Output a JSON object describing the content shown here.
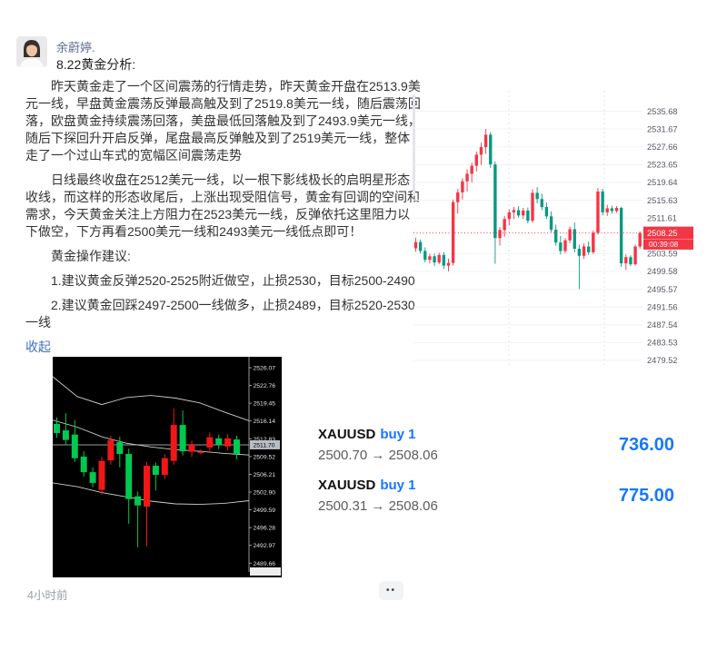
{
  "post": {
    "author": "余蔚婷.",
    "title": "8.22黄金分析:",
    "paragraphs": [
      "昨天黄金走了一个区间震荡的行情走势，昨天黄金开盘在2513.9美元一线，早盘黄金震荡反弹最高触及到了2519.8美元一线，随后震荡回落，欧盘黄金持续震荡回落，美盘最低回落触及到了2493.9美元一线，随后下探回升开启反弹，尾盘最高反弹触及到了2519美元一线，整体走了一个过山车式的宽幅区间震荡走势",
      "日线最终收盘在2512美元一线，以一根下影线极长的启明星形态收线，而这样的形态收尾后，上涨出现受阻信号，黄金有回调的空间和需求，今天黄金关注上方阻力在2523美元一线，反弹依托这里阻力以下做空，下方再看2500美元一线和2493美元一线低点即可！",
      "黄金操作建议:",
      "1.建议黄金反弹2520-2525附近做空，止损2530，目标2500-2490",
      "2.建议黄金回踩2497-2500一线做多，止损2489，目标2520-2530一线"
    ],
    "collapse_label": "收起",
    "timestamp": "4小时前",
    "more_label": "••"
  },
  "trades": {
    "rows": [
      {
        "symbol": "XAUUSD",
        "side": "buy 1",
        "open": "2500.70",
        "arrow": "→",
        "close": "2508.06",
        "profit": "736.00"
      },
      {
        "symbol": "XAUUSD",
        "side": "buy 1",
        "open": "2500.31",
        "arrow": "→",
        "close": "2508.06",
        "profit": "775.00"
      }
    ]
  },
  "colors": {
    "accent_blue": "#1677ff",
    "link_blue": "#436ec4",
    "tv_up_red": "#f23645",
    "tv_down_green": "#089981",
    "mt4_up_green": "#00c94f",
    "mt4_down_red": "#f11717"
  },
  "chart_data": [
    {
      "name": "gold-intraday-chart",
      "type": "candlestick",
      "style": "tv",
      "ylim": {
        "max": 2540.3,
        "min": 2478.5
      },
      "y_axis": [
        "2535.68",
        "2531.67",
        "2527.66",
        "2523.65",
        "2519.64",
        "2515.63",
        "2511.61",
        "2503.59",
        "2499.58",
        "2495.57",
        "2491.56",
        "2487.54",
        "2483.53",
        "2479.52"
      ],
      "last_price": "2508.25",
      "countdown": "00:39:08",
      "legend_position": "right",
      "grid": true,
      "colors": {
        "up": "#f23645",
        "down": "#089981",
        "grid": "#f1f3f8",
        "vgrid": "#e2e5ec",
        "axis_text": "#555a64"
      },
      "candles": [
        [
          2504.8,
          2507.2,
          2504.0,
          2506.2
        ],
        [
          2506.2,
          2506.8,
          2503.6,
          2504.2
        ],
        [
          2504.2,
          2505.0,
          2501.6,
          2502.2
        ],
        [
          2502.2,
          2503.6,
          2501.4,
          2503.0
        ],
        [
          2503.0,
          2503.6,
          2500.8,
          2501.6
        ],
        [
          2501.6,
          2503.8,
          2501.2,
          2503.3
        ],
        [
          2503.3,
          2503.9,
          2500.1,
          2500.9
        ],
        [
          2500.9,
          2502.5,
          2499.6,
          2501.5
        ],
        [
          2501.5,
          2515.8,
          2500.9,
          2515.2
        ],
        [
          2515.2,
          2518.2,
          2512.6,
          2517.4
        ],
        [
          2517.4,
          2520.6,
          2515.8,
          2519.9
        ],
        [
          2519.9,
          2522.6,
          2517.6,
          2521.6
        ],
        [
          2521.6,
          2524.1,
          2519.6,
          2523.4
        ],
        [
          2523.4,
          2526.6,
          2522.1,
          2525.9
        ],
        [
          2525.9,
          2528.6,
          2523.6,
          2527.6
        ],
        [
          2527.6,
          2531.7,
          2526.1,
          2530.4
        ],
        [
          2530.4,
          2531.0,
          2522.9,
          2523.7
        ],
        [
          2523.7,
          2524.4,
          2501.3,
          2507.1
        ],
        [
          2507.1,
          2509.6,
          2505.4,
          2508.9
        ],
        [
          2508.9,
          2512.1,
          2507.4,
          2511.4
        ],
        [
          2511.4,
          2513.6,
          2509.9,
          2512.9
        ],
        [
          2512.9,
          2514.1,
          2511.4,
          2513.4
        ],
        [
          2513.4,
          2514.3,
          2511.7,
          2512.2
        ],
        [
          2512.2,
          2513.9,
          2511.4,
          2513.3
        ],
        [
          2513.3,
          2514.0,
          2510.4,
          2511.0
        ],
        [
          2511.0,
          2518.1,
          2510.6,
          2517.3
        ],
        [
          2517.3,
          2518.6,
          2514.9,
          2515.9
        ],
        [
          2515.9,
          2517.1,
          2513.4,
          2514.1
        ],
        [
          2514.1,
          2515.1,
          2511.4,
          2512.0
        ],
        [
          2512.0,
          2513.1,
          2508.4,
          2509.0
        ],
        [
          2509.0,
          2510.1,
          2505.4,
          2506.1
        ],
        [
          2506.1,
          2507.6,
          2503.4,
          2504.2
        ],
        [
          2504.2,
          2507.1,
          2503.7,
          2506.6
        ],
        [
          2506.6,
          2509.7,
          2505.9,
          2509.1
        ],
        [
          2509.1,
          2510.6,
          2503.9,
          2504.7
        ],
        [
          2504.7,
          2505.6,
          2495.6,
          2503.1
        ],
        [
          2503.1,
          2505.9,
          2502.4,
          2505.2
        ],
        [
          2505.2,
          2506.3,
          2503.3,
          2503.9
        ],
        [
          2503.9,
          2508.8,
          2503.5,
          2508.3
        ],
        [
          2508.3,
          2518.4,
          2507.9,
          2517.6
        ],
        [
          2517.6,
          2518.2,
          2512.2,
          2512.9
        ],
        [
          2512.9,
          2514.6,
          2512.1,
          2513.8
        ],
        [
          2513.8,
          2514.4,
          2512.6,
          2513.2
        ],
        [
          2513.2,
          2514.3,
          2512.8,
          2513.9
        ],
        [
          2513.9,
          2514.2,
          2500.6,
          2501.4
        ],
        [
          2501.4,
          2503.4,
          2499.9,
          2502.8
        ],
        [
          2502.8,
          2503.2,
          2500.8,
          2501.2
        ],
        [
          2501.2,
          2505.6,
          2500.9,
          2505.2
        ],
        [
          2505.2,
          2508.6,
          2504.7,
          2508.25
        ]
      ]
    },
    {
      "name": "mt4-dark-chart",
      "type": "candlestick",
      "style": "mt4",
      "ylim": {
        "max": 2528.1,
        "min": 2487.0
      },
      "y_axis": [
        "2526.07",
        "2522.76",
        "2519.45",
        "2516.14",
        "2512.83",
        "2509.52",
        "2506.21",
        "2502.90",
        "2499.59",
        "2496.28",
        "2492.97",
        "2489.66"
      ],
      "current_price": "2511.70",
      "grid": false,
      "colors": {
        "up": "#00c94f",
        "down": "#f11717",
        "band": "#c9cfc9",
        "axis_text": "#e2e2e2",
        "price_line": "#cfcfcf",
        "price_label_bg": "#b9bdc5"
      },
      "bands": {
        "upper": [
          2524.4,
          2520.7,
          2519.2,
          2520.5,
          2520.9,
          2520.4,
          2519.5,
          2517.8,
          2516.2
        ],
        "middle": [
          2516.3,
          2515.0,
          2513.2,
          2512.0,
          2511.3,
          2510.8,
          2510.5,
          2510.1,
          2509.8
        ],
        "lower": [
          2504.6,
          2503.9,
          2502.8,
          2502.0,
          2501.2,
          2500.7,
          2500.6,
          2500.8,
          2501.3
        ]
      },
      "candles": [
        [
          2513.9,
          2516.8,
          2513.0,
          2515.6
        ],
        [
          2512.6,
          2517.6,
          2511.7,
          2514.4
        ],
        [
          2509.2,
          2516.3,
          2508.5,
          2513.6
        ],
        [
          2506.6,
          2510.5,
          2505.8,
          2509.5
        ],
        [
          2504.6,
          2507.5,
          2503.8,
          2506.6
        ],
        [
          2508.7,
          2509.5,
          2502.4,
          2503.3
        ],
        [
          2512.6,
          2513.4,
          2508.0,
          2508.8
        ],
        [
          2510.0,
          2513.2,
          2507.5,
          2512.2
        ],
        [
          2501.6,
          2511.0,
          2497.0,
          2510.0
        ],
        [
          2500.4,
          2503.0,
          2492.6,
          2502.1
        ],
        [
          2507.8,
          2508.5,
          2492.8,
          2500.2
        ],
        [
          2506.1,
          2508.4,
          2503.2,
          2507.8
        ],
        [
          2509.2,
          2510.0,
          2505.3,
          2506.1
        ],
        [
          2515.4,
          2518.5,
          2508.0,
          2508.7
        ],
        [
          2510.5,
          2518.1,
          2509.7,
          2515.4
        ],
        [
          2511.7,
          2512.5,
          2509.5,
          2510.4
        ],
        [
          2510.4,
          2510.9,
          2509.9,
          2510.3
        ],
        [
          2513.1,
          2514.0,
          2510.5,
          2511.2
        ],
        [
          2511.7,
          2513.6,
          2510.9,
          2512.9
        ],
        [
          2512.9,
          2513.7,
          2510.7,
          2511.4
        ],
        [
          2510.0,
          2513.4,
          2509.0,
          2512.7
        ]
      ]
    }
  ]
}
